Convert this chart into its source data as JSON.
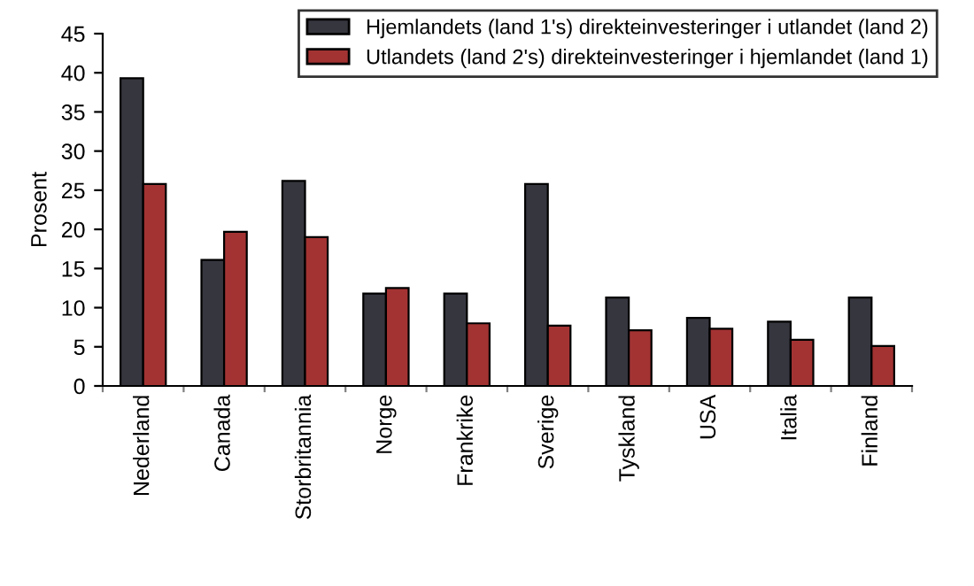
{
  "chart_data": {
    "type": "bar",
    "ylabel": "Prosent",
    "categories": [
      "Nederland",
      "Canada",
      "Storbritannia",
      "Norge",
      "Frankrike",
      "Sverige",
      "Tyskland",
      "USA",
      "Italia",
      "Finland"
    ],
    "series": [
      {
        "name": "Hjemlandets (land 1's) direkteinvesteringer i utlandet (land 2)",
        "color": "#36363f",
        "values": [
          39.3,
          16.1,
          26.2,
          11.8,
          11.8,
          25.8,
          11.3,
          8.7,
          8.2,
          11.3
        ]
      },
      {
        "name": "Utlandets (land 2's) direkteinvesteringer i hjemlandet (land 1)",
        "color": "#a33333",
        "values": [
          25.8,
          19.7,
          19.0,
          12.5,
          8.0,
          7.7,
          7.1,
          7.3,
          5.9,
          5.1
        ]
      }
    ],
    "ylim": [
      0,
      45
    ],
    "yticks": [
      0,
      5,
      10,
      15,
      20,
      25,
      30,
      35,
      40,
      45
    ],
    "grid": false,
    "legend": "top right"
  }
}
